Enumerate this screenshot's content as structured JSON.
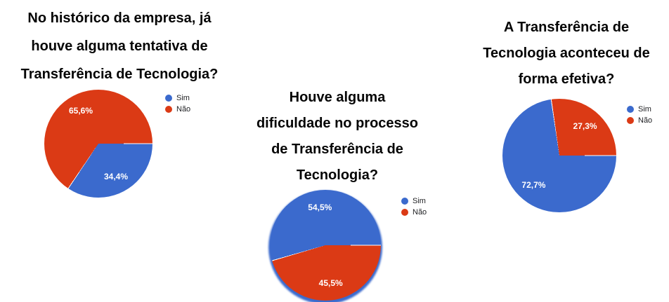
{
  "figure_background": "#ffffff",
  "palette": {
    "sim_blue": "#3B6ACD",
    "nao_red": "#DB3A15",
    "label_text": "#ffffff",
    "legend_text": "#202124",
    "title_text": "#050505"
  },
  "chart_data": [
    {
      "type": "pie",
      "title": "No histórico da empresa, já houve alguma tentativa de Transferência de Tecnologia?",
      "title_lines": [
        "No histórico da empresa, já",
        "houve alguma tentativa de",
        "Transferência de Tecnologia?"
      ],
      "legend_position": "right",
      "rotation_deg": 90,
      "direction": "clockwise",
      "slices": [
        {
          "label": "Sim",
          "value_pct": 34.4,
          "value_label": "34,4%",
          "color": "#3B6ACD",
          "start_deg": 0,
          "end_deg": 123.84
        },
        {
          "label": "Não",
          "value_pct": 65.6,
          "value_label": "65,6%",
          "color": "#DB3A15",
          "start_deg": 123.84,
          "end_deg": 360
        }
      ]
    },
    {
      "type": "pie",
      "title": "Houve alguma dificuldade no processo de Transferência de Tecnologia?",
      "title_lines": [
        "Houve alguma",
        "dificuldade no processo",
        "de Transferência de",
        "Tecnologia?"
      ],
      "legend_position": "right",
      "rotation_deg": 90,
      "direction": "clockwise",
      "slices": [
        {
          "label": "Sim",
          "value_pct": 54.5,
          "value_label": "54,5%",
          "color": "#3B6ACD",
          "start_deg": 163.8,
          "end_deg": 360
        },
        {
          "label": "Não",
          "value_pct": 45.5,
          "value_label": "45,5%",
          "color": "#DB3A15",
          "start_deg": 0,
          "end_deg": 163.8
        }
      ]
    },
    {
      "type": "pie",
      "title": "A Transferência de Tecnologia aconteceu de forma efetiva?",
      "title_lines": [
        "A Transferência de",
        "Tecnologia aconteceu de",
        "forma efetiva?"
      ],
      "legend_position": "right",
      "rotation_deg": 90,
      "direction": "clockwise",
      "slices": [
        {
          "label": "Sim",
          "value_pct": 72.7,
          "value_label": "72,7%",
          "color": "#3B6ACD",
          "start_deg": 0,
          "end_deg": 261.72
        },
        {
          "label": "Não",
          "value_pct": 27.3,
          "value_label": "27,3%",
          "color": "#DB3A15",
          "start_deg": 261.72,
          "end_deg": 360
        }
      ]
    }
  ]
}
